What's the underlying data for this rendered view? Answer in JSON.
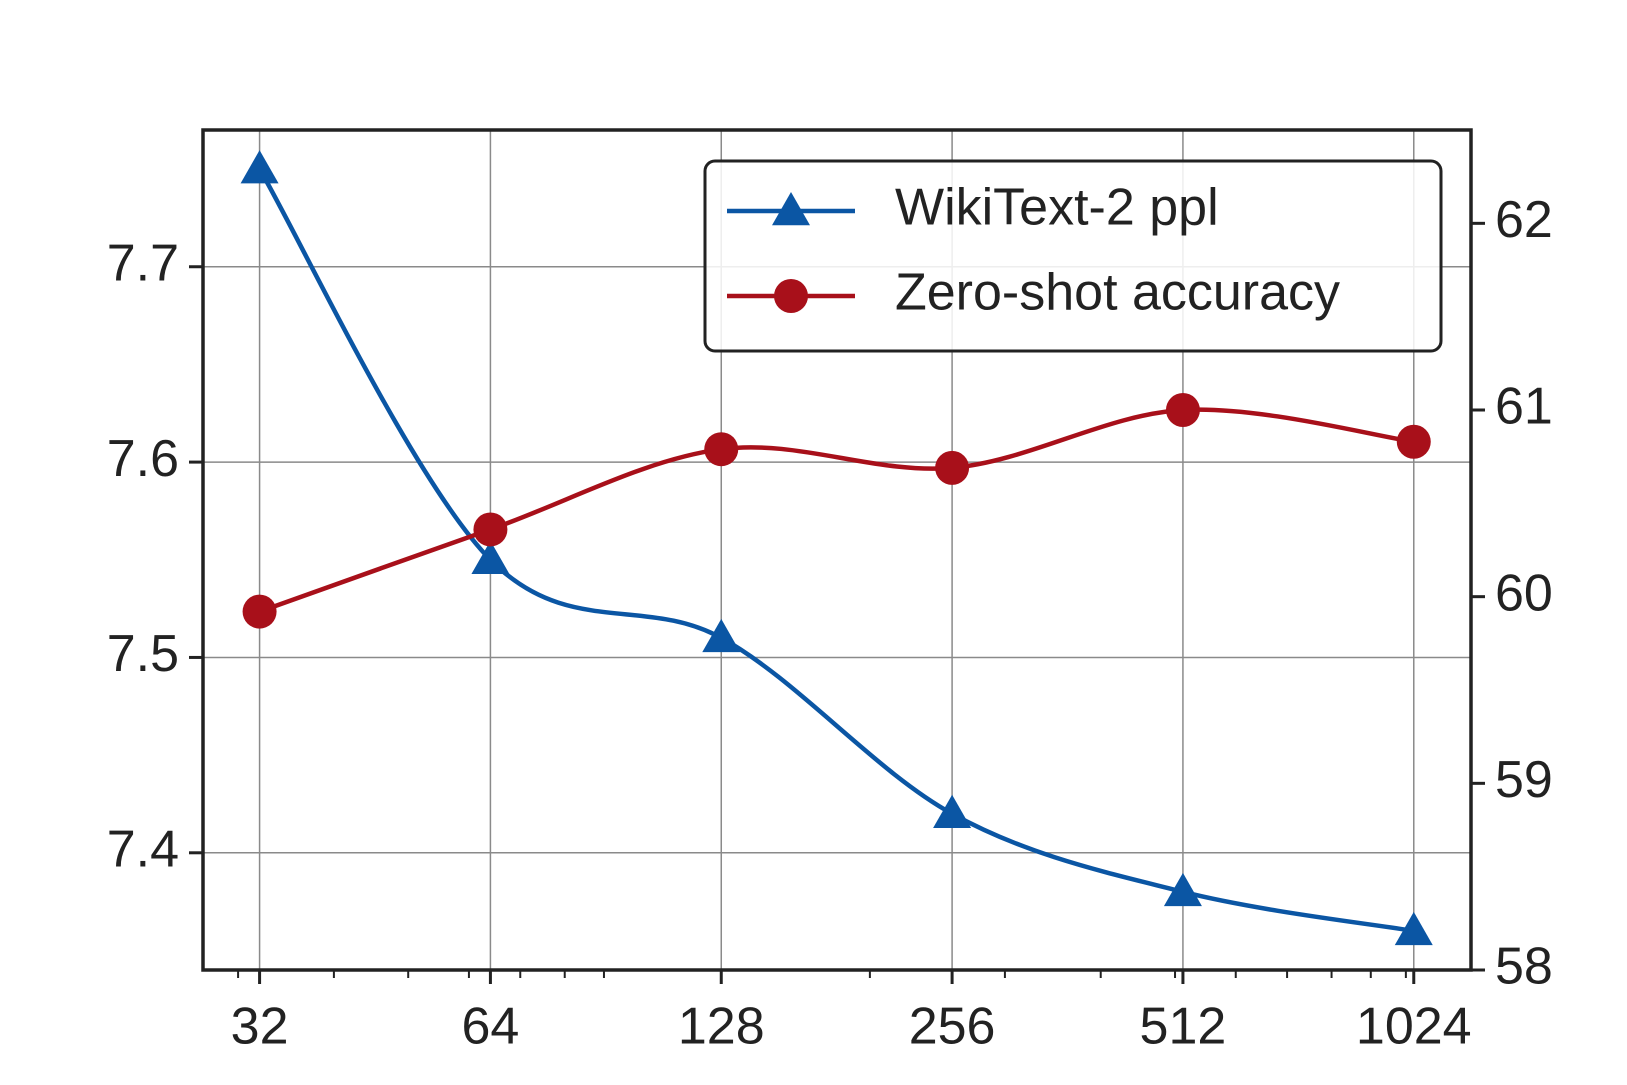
{
  "chart_data": {
    "type": "line",
    "x": [
      32,
      64,
      128,
      256,
      512,
      1024
    ],
    "xlog": 2,
    "xlim": [
      27,
      1216
    ],
    "xticks": [
      32,
      64,
      128,
      256,
      512,
      1024
    ],
    "xminor_ticks": [
      30,
      40,
      50,
      60,
      70,
      80,
      90,
      200,
      300,
      400,
      500,
      600,
      700,
      800,
      900,
      1000
    ],
    "ylim": [
      7.34,
      7.77
    ],
    "yticks": [
      7.4,
      7.5,
      7.6,
      7.7
    ],
    "y2lim": [
      58,
      62.5
    ],
    "y2ticks": [
      58,
      59,
      60,
      61,
      62
    ],
    "grid": true,
    "legend": "upper right",
    "series": [
      {
        "name": "WikiText-2 ppl",
        "color": "#0b56a4",
        "marker": "triangle",
        "values": [
          7.75,
          7.55,
          7.51,
          7.42,
          7.38,
          7.36
        ]
      },
      {
        "name": "Zero-shot accuracy",
        "color": "#a8101a",
        "marker": "circle",
        "axis": "y2",
        "values": [
          59.92,
          60.36,
          60.79,
          60.69,
          61.0,
          60.83
        ]
      }
    ]
  }
}
